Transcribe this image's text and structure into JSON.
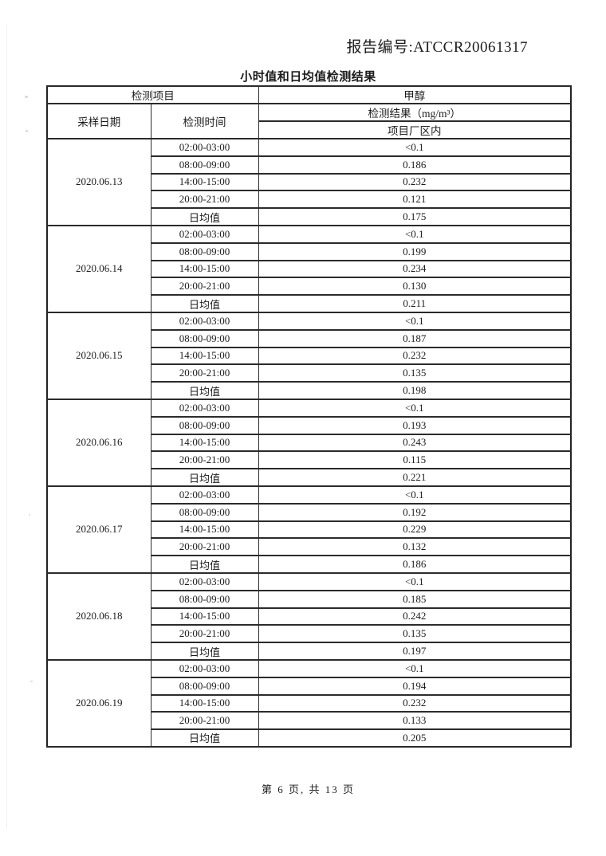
{
  "page": {
    "report_no": "报告编号:ATCCR20061317",
    "title": "小时值和日均值检测结果",
    "footer": "第 6 页, 共 13 页"
  },
  "table": {
    "header": {
      "detection_item": "检测项目",
      "substance": "甲醇",
      "sampling_date": "采样日期",
      "detection_time": "检测时间",
      "result_unit": "检测结果（mg/m³）",
      "location": "项目厂区内"
    },
    "daily_average_label": "日均值",
    "blocks": [
      {
        "date": "2020.06.13",
        "rows": [
          [
            "02:00-03:00",
            "<0.1"
          ],
          [
            "08:00-09:00",
            "0.186"
          ],
          [
            "14:00-15:00",
            "0.232"
          ],
          [
            "20:00-21:00",
            "0.121"
          ],
          [
            "日均值",
            "0.175"
          ]
        ]
      },
      {
        "date": "2020.06.14",
        "rows": [
          [
            "02:00-03:00",
            "<0.1"
          ],
          [
            "08:00-09:00",
            "0.199"
          ],
          [
            "14:00-15:00",
            "0.234"
          ],
          [
            "20:00-21:00",
            "0.130"
          ],
          [
            "日均值",
            "0.211"
          ]
        ]
      },
      {
        "date": "2020.06.15",
        "rows": [
          [
            "02:00-03:00",
            "<0.1"
          ],
          [
            "08:00-09:00",
            "0.187"
          ],
          [
            "14:00-15:00",
            "0.232"
          ],
          [
            "20:00-21:00",
            "0.135"
          ],
          [
            "日均值",
            "0.198"
          ]
        ]
      },
      {
        "date": "2020.06.16",
        "rows": [
          [
            "02:00-03:00",
            "<0.1"
          ],
          [
            "08:00-09:00",
            "0.193"
          ],
          [
            "14:00-15:00",
            "0.243"
          ],
          [
            "20:00-21:00",
            "0.115"
          ],
          [
            "日均值",
            "0.221"
          ]
        ]
      },
      {
        "date": "2020.06.17",
        "rows": [
          [
            "02:00-03:00",
            "<0.1"
          ],
          [
            "08:00-09:00",
            "0.192"
          ],
          [
            "14:00-15:00",
            "0.229"
          ],
          [
            "20:00-21:00",
            "0.132"
          ],
          [
            "日均值",
            "0.186"
          ]
        ]
      },
      {
        "date": "2020.06.18",
        "rows": [
          [
            "02:00-03:00",
            "<0.1"
          ],
          [
            "08:00-09:00",
            "0.185"
          ],
          [
            "14:00-15:00",
            "0.242"
          ],
          [
            "20:00-21:00",
            "0.135"
          ],
          [
            "日均值",
            "0.197"
          ]
        ]
      },
      {
        "date": "2020.06.19",
        "rows": [
          [
            "02:00-03:00",
            "<0.1"
          ],
          [
            "08:00-09:00",
            "0.194"
          ],
          [
            "14:00-15:00",
            "0.232"
          ],
          [
            "20:00-21:00",
            "0.133"
          ],
          [
            "日均值",
            "0.205"
          ]
        ]
      }
    ]
  }
}
